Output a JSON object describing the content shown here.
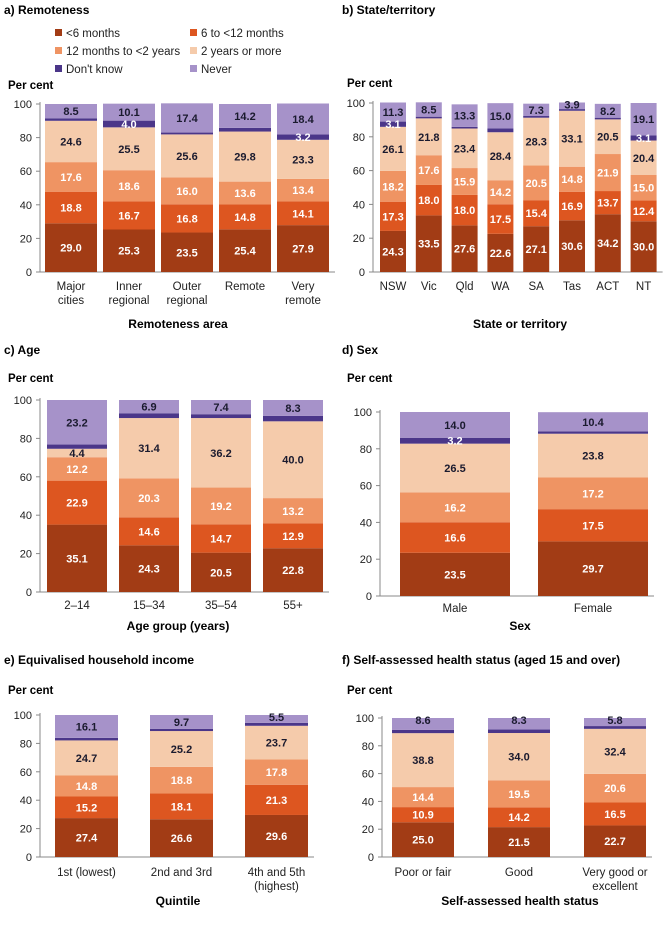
{
  "colors": {
    "lt6": "#a23c15",
    "m6to12": "#dd5620",
    "m12to2y": "#ef9463",
    "y2plus": "#f5cbab",
    "dontknow": "#4b3689",
    "never": "#a692c9"
  },
  "legend": [
    {
      "key": "lt6",
      "label": "<6 months"
    },
    {
      "key": "m6to12",
      "label": "6 to <12 months"
    },
    {
      "key": "m12to2y",
      "label": "12 months to <2 years"
    },
    {
      "key": "y2plus",
      "label": "2 years or more"
    },
    {
      "key": "dontknow",
      "label": "Don't know"
    },
    {
      "key": "never",
      "label": "Never"
    }
  ],
  "chart_data": [
    {
      "type": "bar",
      "stacked": true,
      "title": "a) Remoteness",
      "ylabel": "Per cent",
      "xlabel": "Remoteness area",
      "ylim": [
        0,
        100
      ],
      "yticks": [
        0,
        20,
        40,
        60,
        80,
        100
      ],
      "categories": [
        "Major cities",
        "Inner regional",
        "Outer regional",
        "Remote",
        "Very remote"
      ],
      "series": [
        {
          "name": "<6 months",
          "key": "lt6",
          "values": [
            29.0,
            25.3,
            23.5,
            25.4,
            27.9
          ]
        },
        {
          "name": "6 to <12 months",
          "key": "m6to12",
          "values": [
            18.8,
            16.7,
            16.8,
            14.8,
            14.1
          ]
        },
        {
          "name": "12 months to <2 years",
          "key": "m12to2y",
          "values": [
            17.6,
            18.6,
            16.0,
            13.6,
            13.4
          ]
        },
        {
          "name": "2 years or more",
          "key": "y2plus",
          "values": [
            24.6,
            25.5,
            25.6,
            29.8,
            23.3
          ]
        },
        {
          "name": "Don't know",
          "key": "dontknow",
          "values": [
            1.5,
            4.0,
            1.1,
            2.2,
            3.2
          ]
        },
        {
          "name": "Never",
          "key": "never",
          "values": [
            8.5,
            10.1,
            17.4,
            14.2,
            18.4
          ]
        }
      ]
    },
    {
      "type": "bar",
      "stacked": true,
      "title": "b) State/territory",
      "ylabel": "Per cent",
      "xlabel": "State or territory",
      "ylim": [
        0,
        100
      ],
      "yticks": [
        0,
        20,
        40,
        60,
        80,
        100
      ],
      "categories": [
        "NSW",
        "Vic",
        "Qld",
        "WA",
        "SA",
        "Tas",
        "ACT",
        "NT"
      ],
      "series": [
        {
          "name": "<6 months",
          "key": "lt6",
          "values": [
            24.3,
            33.5,
            27.6,
            22.6,
            27.1,
            30.6,
            34.2,
            30.0
          ]
        },
        {
          "name": "6 to <12 months",
          "key": "m6to12",
          "values": [
            17.3,
            18.0,
            18.0,
            17.5,
            15.4,
            16.9,
            13.7,
            12.4
          ]
        },
        {
          "name": "12 months to <2 years",
          "key": "m12to2y",
          "values": [
            18.2,
            17.6,
            15.9,
            14.2,
            20.5,
            14.8,
            21.9,
            15.0
          ]
        },
        {
          "name": "2 years or more",
          "key": "y2plus",
          "values": [
            26.1,
            21.8,
            23.4,
            28.4,
            28.3,
            33.1,
            20.5,
            20.4
          ]
        },
        {
          "name": "Don't know",
          "key": "dontknow",
          "values": [
            3.1,
            1.0,
            1.0,
            2.2,
            1.0,
            1.0,
            1.0,
            3.1
          ]
        },
        {
          "name": "Never",
          "key": "never",
          "values": [
            11.3,
            8.5,
            13.3,
            15.0,
            7.3,
            3.9,
            8.2,
            19.1
          ]
        }
      ]
    },
    {
      "type": "bar",
      "stacked": true,
      "title": "c) Age",
      "ylabel": "Per cent",
      "xlabel": "Age group (years)",
      "ylim": [
        0,
        100
      ],
      "yticks": [
        0,
        20,
        40,
        60,
        80,
        100
      ],
      "categories": [
        "2–14",
        "15–34",
        "35–54",
        "55+"
      ],
      "series": [
        {
          "name": "<6 months",
          "key": "lt6",
          "values": [
            35.1,
            24.3,
            20.5,
            22.8
          ]
        },
        {
          "name": "6 to <12 months",
          "key": "m6to12",
          "values": [
            22.9,
            14.6,
            14.7,
            12.9
          ]
        },
        {
          "name": "12 months to <2 years",
          "key": "m12to2y",
          "values": [
            12.2,
            20.3,
            19.2,
            13.2
          ]
        },
        {
          "name": "2 years or more",
          "key": "y2plus",
          "values": [
            4.4,
            31.4,
            36.2,
            40.0
          ]
        },
        {
          "name": "Don't know",
          "key": "dontknow",
          "values": [
            2.2,
            2.5,
            2.0,
            2.8
          ]
        },
        {
          "name": "Never",
          "key": "never",
          "values": [
            23.2,
            6.9,
            7.4,
            8.3
          ]
        }
      ]
    },
    {
      "type": "bar",
      "stacked": true,
      "title": "d) Sex",
      "ylabel": "Per cent",
      "xlabel": "Sex",
      "ylim": [
        0,
        100
      ],
      "yticks": [
        0,
        20,
        40,
        60,
        80,
        100
      ],
      "categories": [
        "Male",
        "Female"
      ],
      "series": [
        {
          "name": "<6 months",
          "key": "lt6",
          "values": [
            23.5,
            29.7
          ]
        },
        {
          "name": "6 to <12 months",
          "key": "m6to12",
          "values": [
            16.6,
            17.5
          ]
        },
        {
          "name": "12 months to <2 years",
          "key": "m12to2y",
          "values": [
            16.2,
            17.2
          ]
        },
        {
          "name": "2 years or more",
          "key": "y2plus",
          "values": [
            26.5,
            23.8
          ]
        },
        {
          "name": "Don't know",
          "key": "dontknow",
          "values": [
            3.2,
            1.3
          ]
        },
        {
          "name": "Never",
          "key": "never",
          "values": [
            14.0,
            10.4
          ]
        }
      ]
    },
    {
      "type": "bar",
      "stacked": true,
      "title": "e) Equivalised household income",
      "ylabel": "Per cent",
      "xlabel": "Quintile",
      "ylim": [
        0,
        100
      ],
      "yticks": [
        0,
        20,
        40,
        60,
        80,
        100
      ],
      "categories": [
        "1st (lowest)",
        "2nd and 3rd",
        "4th and 5th (highest)"
      ],
      "series": [
        {
          "name": "<6 months",
          "key": "lt6",
          "values": [
            27.4,
            26.6,
            29.6
          ]
        },
        {
          "name": "6 to <12 months",
          "key": "m6to12",
          "values": [
            15.2,
            18.1,
            21.3
          ]
        },
        {
          "name": "12 months to <2 years",
          "key": "m12to2y",
          "values": [
            14.8,
            18.8,
            17.8
          ]
        },
        {
          "name": "2 years or more",
          "key": "y2plus",
          "values": [
            24.7,
            25.2,
            23.7
          ]
        },
        {
          "name": "Don't know",
          "key": "dontknow",
          "values": [
            1.8,
            1.6,
            2.1
          ]
        },
        {
          "name": "Never",
          "key": "never",
          "values": [
            16.1,
            9.7,
            5.5
          ]
        }
      ]
    },
    {
      "type": "bar",
      "stacked": true,
      "title": "f) Self-assessed health status (aged 15 and over)",
      "ylabel": "Per cent",
      "xlabel": "Self-assessed health status",
      "ylim": [
        0,
        100
      ],
      "yticks": [
        0,
        20,
        40,
        60,
        80,
        100
      ],
      "categories": [
        "Poor or fair",
        "Good",
        "Very good or excellent"
      ],
      "series": [
        {
          "name": "<6 months",
          "key": "lt6",
          "values": [
            25.0,
            21.5,
            22.7
          ]
        },
        {
          "name": "6 to <12 months",
          "key": "m6to12",
          "values": [
            10.9,
            14.2,
            16.5
          ]
        },
        {
          "name": "12 months to <2 years",
          "key": "m12to2y",
          "values": [
            14.4,
            19.5,
            20.6
          ]
        },
        {
          "name": "2 years or more",
          "key": "y2plus",
          "values": [
            38.8,
            34.0,
            32.4
          ]
        },
        {
          "name": "Don't know",
          "key": "dontknow",
          "values": [
            2.3,
            2.5,
            2.0
          ]
        },
        {
          "name": "Never",
          "key": "never",
          "values": [
            8.6,
            8.3,
            5.8
          ]
        }
      ]
    }
  ]
}
